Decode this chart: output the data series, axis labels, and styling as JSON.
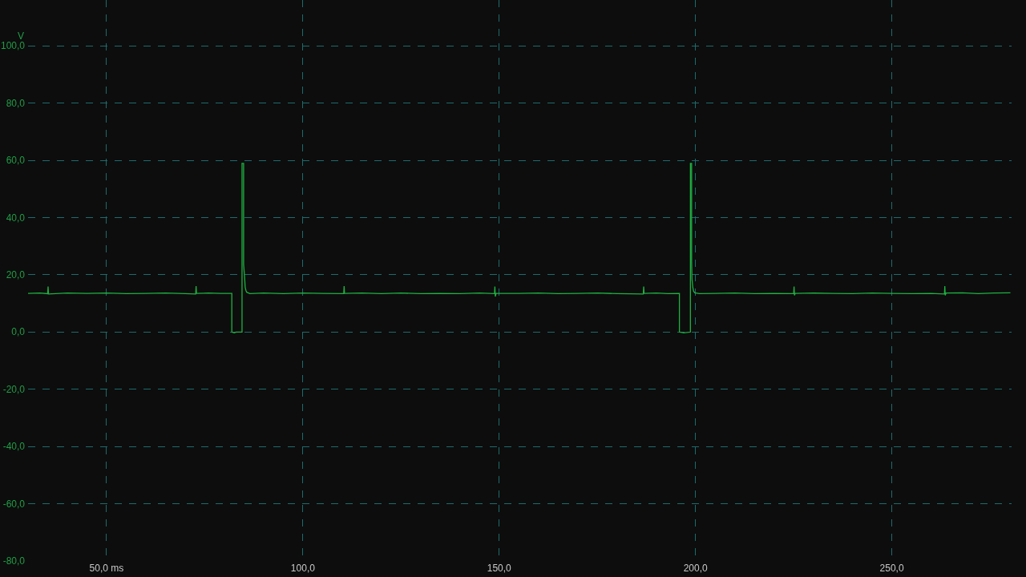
{
  "chart_data": {
    "type": "line",
    "ylabel": "V",
    "color": "#1fb141",
    "line_style": "solid",
    "grid": true,
    "xlim": [
      30,
      280.5
    ],
    "ylim": [
      -80,
      116
    ],
    "xticks": [
      {
        "value": 50,
        "label": "50,0 ms"
      },
      {
        "value": 100,
        "label": "100,0"
      },
      {
        "value": 150,
        "label": "150,0"
      },
      {
        "value": 200,
        "label": "200,0"
      },
      {
        "value": 250,
        "label": "250,0"
      }
    ],
    "yticks": [
      {
        "value": -80,
        "label": "-80,0"
      },
      {
        "value": -60,
        "label": "-60,0"
      },
      {
        "value": -40,
        "label": "-40,0"
      },
      {
        "value": -20,
        "label": "-20,0"
      },
      {
        "value": 0,
        "label": "0,0"
      },
      {
        "value": 20,
        "label": "20,0"
      },
      {
        "value": 40,
        "label": "40,0"
      },
      {
        "value": 60,
        "label": "60,0"
      },
      {
        "value": 80,
        "label": "80,0"
      },
      {
        "value": 100,
        "label": "100,0"
      }
    ],
    "x": [
      30.0,
      33.0,
      35.0,
      35.1,
      35.2,
      40,
      45,
      50,
      55,
      60,
      65,
      70,
      72.7,
      72.8,
      72.9,
      76,
      79,
      81.9,
      81.9,
      82.5,
      83,
      84.5,
      84.5,
      84.9,
      84.9,
      85.2,
      85.3,
      85.5,
      85.7,
      86.5,
      90,
      95,
      100,
      105,
      110.4,
      110.5,
      110.6,
      115,
      120,
      125,
      130,
      135,
      140,
      145,
      148.8,
      148.9,
      149.0,
      149.2,
      155,
      160,
      165,
      170,
      175,
      180,
      186.7,
      186.8,
      186.9,
      190,
      193,
      195.9,
      195.9,
      197,
      198.7,
      198.7,
      199.0,
      199.0,
      199.1,
      199.3,
      199.5,
      199.8,
      201,
      205,
      210,
      215,
      220,
      225.0,
      225.1,
      225.2,
      225.4,
      230,
      235,
      240,
      245,
      250,
      255,
      260,
      263.4,
      263.5,
      263.6,
      263.8,
      268,
      272,
      276,
      280.2
    ],
    "values": [
      13.5,
      13.6,
      13.4,
      15.9,
      13.3,
      13.6,
      13.5,
      13.6,
      13.4,
      13.5,
      13.6,
      13.4,
      13.3,
      16.0,
      13.5,
      13.6,
      13.5,
      13.5,
      0.0,
      -0.3,
      0.0,
      0.0,
      58.9,
      58.9,
      23.7,
      18.1,
      15.6,
      14.5,
      13.9,
      13.4,
      13.6,
      13.4,
      13.6,
      13.5,
      13.4,
      16.0,
      13.5,
      13.6,
      13.4,
      13.6,
      13.4,
      13.5,
      13.4,
      13.6,
      13.4,
      15.9,
      12.4,
      13.5,
      13.5,
      13.6,
      13.4,
      13.5,
      13.6,
      13.4,
      13.3,
      15.9,
      13.5,
      13.6,
      13.4,
      13.5,
      0.0,
      -0.3,
      0.0,
      58.9,
      58.9,
      24.8,
      18.4,
      15.7,
      14.3,
      13.7,
      13.4,
      13.5,
      13.6,
      13.4,
      13.5,
      13.4,
      15.9,
      12.8,
      13.5,
      13.6,
      13.5,
      13.4,
      13.6,
      13.5,
      13.4,
      13.5,
      13.3,
      16.0,
      12.8,
      13.6,
      13.7,
      13.4,
      13.6,
      13.7
    ]
  }
}
